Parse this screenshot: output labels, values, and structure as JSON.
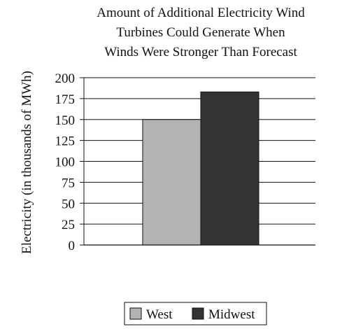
{
  "chart_data": {
    "type": "bar",
    "title_lines": [
      "Amount of Additional Electricity Wind",
      "Turbines Could Generate When",
      "Winds Were Stronger Than Forecast"
    ],
    "ylabel": "Electricity (in thousands of MWh)",
    "xlabel": "",
    "ylim": [
      0,
      200
    ],
    "yticks": [
      0,
      25,
      50,
      75,
      100,
      125,
      150,
      175,
      200
    ],
    "grid": true,
    "series": [
      {
        "name": "West",
        "values": [
          150
        ],
        "color": "#b3b3b3"
      },
      {
        "name": "Midwest",
        "values": [
          183
        ],
        "color": "#333333"
      }
    ],
    "legend_position": "bottom"
  }
}
